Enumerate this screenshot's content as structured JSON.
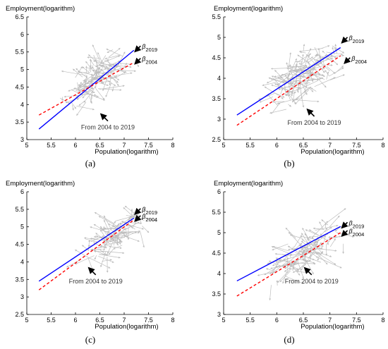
{
  "chart_data": [
    {
      "type": "line",
      "panel_label": "(a)",
      "ylabel": "Employment(logarithm)",
      "xlabel": "Population(logarithm)",
      "xlim": [
        5,
        8
      ],
      "ylim": [
        3,
        6.5
      ],
      "xticks": [
        "5",
        "5.5",
        "6",
        "6.5",
        "7",
        "7.5",
        "8"
      ],
      "yticks": [
        "3",
        "3.5",
        "4",
        "4.5",
        "5",
        "5.5",
        "6",
        "6.5"
      ],
      "series": [
        {
          "name": "β2019",
          "style": "solid",
          "color": "#0000ff",
          "x": [
            5.25,
            7.2
          ],
          "y": [
            3.3,
            5.55
          ]
        },
        {
          "name": "β2004",
          "style": "dashed",
          "color": "#ff0000",
          "x": [
            5.25,
            7.2
          ],
          "y": [
            3.7,
            5.2
          ]
        }
      ],
      "annotations": [
        {
          "text": "β",
          "sub": "2019",
          "x": 7.25,
          "y": 5.55
        },
        {
          "text": "β",
          "sub": "2004",
          "x": 7.25,
          "y": 5.2
        },
        {
          "text": "From 2004 to 2019",
          "x": 6.55,
          "y": 3.45
        }
      ]
    },
    {
      "type": "line",
      "panel_label": "(b)",
      "ylabel": "Employment(logarithm)",
      "xlabel": "Population(logarithm)",
      "xlim": [
        5,
        8
      ],
      "ylim": [
        2.5,
        5.5
      ],
      "xticks": [
        "5",
        "5.5",
        "6",
        "6.5",
        "7",
        "7.5",
        "8"
      ],
      "yticks": [
        "2.5",
        "3",
        "3.5",
        "4",
        "4.5",
        "5",
        "5.5"
      ],
      "series": [
        {
          "name": "β2019",
          "style": "solid",
          "color": "#0000ff",
          "x": [
            5.25,
            7.2
          ],
          "y": [
            3.1,
            4.75
          ]
        },
        {
          "name": "β2004",
          "style": "dashed",
          "color": "#ff0000",
          "x": [
            5.25,
            7.2
          ],
          "y": [
            2.85,
            4.55
          ]
        }
      ],
      "annotations": [
        {
          "text": "β",
          "sub": "2019",
          "x": 7.25,
          "y": 4.9
        },
        {
          "text": "β",
          "sub": "2004",
          "x": 7.3,
          "y": 4.4
        },
        {
          "text": "From 2004 to 2019",
          "x": 6.6,
          "y": 3.0
        }
      ]
    },
    {
      "type": "line",
      "panel_label": "(c)",
      "ylabel": "Employment(logarithm)",
      "xlabel": "Population(logarithm)",
      "xlim": [
        5,
        8
      ],
      "ylim": [
        2.5,
        6
      ],
      "xticks": [
        "5",
        "5.5",
        "6",
        "6.5",
        "7",
        "7.5",
        "8"
      ],
      "yticks": [
        "2.5",
        "3",
        "3.5",
        "4",
        "4.5",
        "5",
        "5.5",
        "6"
      ],
      "series": [
        {
          "name": "β2019",
          "style": "solid",
          "color": "#0000ff",
          "x": [
            5.25,
            7.2
          ],
          "y": [
            3.45,
            5.25
          ]
        },
        {
          "name": "β2004",
          "style": "dashed",
          "color": "#ff0000",
          "x": [
            5.25,
            7.2
          ],
          "y": [
            3.2,
            5.2
          ]
        }
      ],
      "annotations": [
        {
          "text": "β",
          "sub": "2019",
          "x": 7.25,
          "y": 5.4
        },
        {
          "text": "β",
          "sub": "2004",
          "x": 7.25,
          "y": 5.2
        },
        {
          "text": "From 2004 to 2019",
          "x": 6.3,
          "y": 3.55
        }
      ]
    },
    {
      "type": "line",
      "panel_label": "(d)",
      "ylabel": "Employment(logarithm)",
      "xlabel": "Population(logarithm)",
      "xlim": [
        5,
        8
      ],
      "ylim": [
        3,
        6
      ],
      "xticks": [
        "5",
        "5.5",
        "6",
        "6.5",
        "7",
        "7.5",
        "8"
      ],
      "yticks": [
        "3",
        "3.5",
        "4",
        "4.5",
        "5",
        "5.5",
        "6"
      ],
      "series": [
        {
          "name": "β2019",
          "style": "solid",
          "color": "#0000ff",
          "x": [
            5.25,
            7.2
          ],
          "y": [
            3.82,
            5.15
          ]
        },
        {
          "name": "β2004",
          "style": "dashed",
          "color": "#ff0000",
          "x": [
            5.25,
            7.2
          ],
          "y": [
            3.45,
            5.0
          ]
        }
      ],
      "annotations": [
        {
          "text": "β",
          "sub": "2019",
          "x": 7.25,
          "y": 5.15
        },
        {
          "text": "β",
          "sub": "2004",
          "x": 7.25,
          "y": 4.95
        },
        {
          "text": "From 2004 to 2019",
          "x": 6.55,
          "y": 3.9
        }
      ]
    }
  ]
}
